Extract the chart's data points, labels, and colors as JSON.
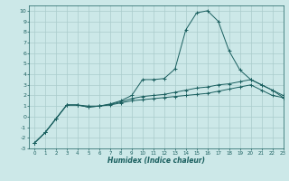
{
  "xlabel": "Humidex (Indice chaleur)",
  "bg_color": "#cce8e8",
  "grid_color": "#aacccc",
  "line_color": "#1a5f5f",
  "marker": "+",
  "xlim": [
    -0.5,
    23
  ],
  "ylim": [
    -3,
    10.5
  ],
  "xticks": [
    0,
    1,
    2,
    3,
    4,
    5,
    6,
    7,
    8,
    9,
    10,
    11,
    12,
    13,
    14,
    15,
    16,
    17,
    18,
    19,
    20,
    21,
    22,
    23
  ],
  "yticks": [
    -3,
    -2,
    -1,
    0,
    1,
    2,
    3,
    4,
    5,
    6,
    7,
    8,
    9,
    10
  ],
  "series": [
    {
      "x": [
        0,
        1,
        2,
        3,
        4,
        5,
        6,
        7,
        8,
        9,
        10,
        11,
        12,
        13,
        14,
        15,
        16,
        17,
        18,
        19,
        20,
        21,
        22,
        23
      ],
      "y": [
        -2.5,
        -1.5,
        -0.2,
        1.1,
        1.1,
        0.9,
        1.0,
        1.1,
        1.3,
        1.5,
        1.6,
        1.7,
        1.8,
        1.9,
        2.0,
        2.1,
        2.2,
        2.4,
        2.6,
        2.8,
        3.0,
        2.5,
        2.0,
        1.8
      ]
    },
    {
      "x": [
        0,
        1,
        2,
        3,
        4,
        5,
        6,
        7,
        8,
        9,
        10,
        11,
        12,
        13,
        14,
        15,
        16,
        17,
        18,
        19,
        20,
        21,
        22,
        23
      ],
      "y": [
        -2.5,
        -1.5,
        -0.2,
        1.1,
        1.1,
        0.9,
        1.0,
        1.15,
        1.4,
        1.7,
        1.9,
        2.0,
        2.1,
        2.3,
        2.5,
        2.7,
        2.8,
        3.0,
        3.1,
        3.3,
        3.5,
        3.0,
        2.5,
        2.0
      ]
    },
    {
      "x": [
        0,
        1,
        2,
        3,
        4,
        5,
        6,
        7,
        8,
        9,
        10,
        11,
        12,
        13,
        14,
        15,
        16,
        17,
        18,
        19,
        20,
        21,
        22,
        23
      ],
      "y": [
        -2.5,
        -1.5,
        -0.2,
        1.1,
        1.1,
        1.0,
        1.0,
        1.2,
        1.5,
        2.0,
        3.5,
        3.5,
        3.6,
        4.5,
        8.2,
        9.8,
        10.0,
        9.0,
        6.2,
        4.4,
        3.5,
        3.0,
        2.5,
        1.8
      ]
    }
  ]
}
